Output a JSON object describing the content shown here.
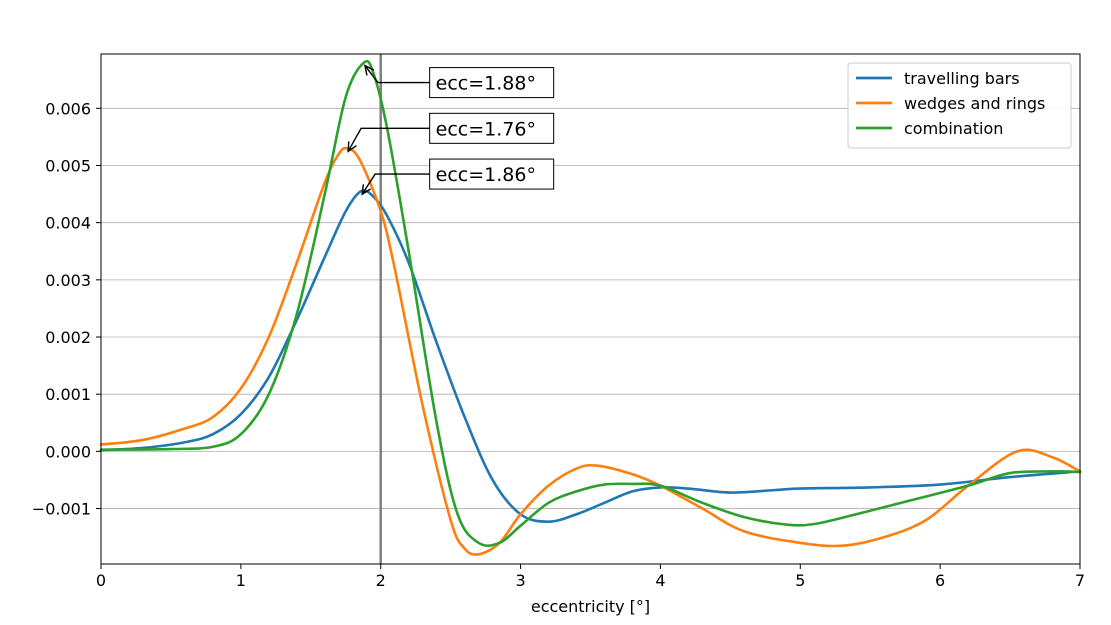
{
  "chart_data": {
    "type": "line",
    "title": "",
    "xlabel": "eccentricity [°]",
    "ylabel": "",
    "xlim": [
      0,
      7
    ],
    "ylim": [
      -0.00197,
      0.00695
    ],
    "xticks": [
      0,
      1,
      2,
      3,
      4,
      5,
      6,
      7
    ],
    "xtick_labels": [
      "0",
      "1",
      "2",
      "3",
      "4",
      "5",
      "6",
      "7"
    ],
    "yticks": [
      -0.001,
      0.0,
      0.001,
      0.002,
      0.003,
      0.004,
      0.005,
      0.006
    ],
    "ytick_labels": [
      "−0.001",
      "0.000",
      "0.001",
      "0.002",
      "0.003",
      "0.004",
      "0.005",
      "0.006"
    ],
    "grid": "horizontal",
    "legend_position": "top-right",
    "vline": {
      "x": 2.0,
      "color": "#7f7f7f"
    },
    "series": [
      {
        "name": "travelling bars",
        "color": "#1f77b4",
        "points": [
          [
            0.0,
            2e-05
          ],
          [
            0.3,
            6e-05
          ],
          [
            0.6,
            0.00016
          ],
          [
            0.8,
            0.0003
          ],
          [
            1.0,
            0.00065
          ],
          [
            1.2,
            0.0013
          ],
          [
            1.4,
            0.0023
          ],
          [
            1.6,
            0.0034
          ],
          [
            1.75,
            0.0042
          ],
          [
            1.86,
            0.00455
          ],
          [
            1.95,
            0.00445
          ],
          [
            2.05,
            0.0041
          ],
          [
            2.2,
            0.0033
          ],
          [
            2.4,
            0.0019
          ],
          [
            2.6,
            0.0006
          ],
          [
            2.8,
            -0.0005
          ],
          [
            3.0,
            -0.0011
          ],
          [
            3.2,
            -0.00123
          ],
          [
            3.4,
            -0.0011
          ],
          [
            3.6,
            -0.0009
          ],
          [
            3.8,
            -0.0007
          ],
          [
            4.0,
            -0.00063
          ],
          [
            4.2,
            -0.00065
          ],
          [
            4.5,
            -0.00072
          ],
          [
            4.8,
            -0.00068
          ],
          [
            5.0,
            -0.00065
          ],
          [
            5.5,
            -0.00063
          ],
          [
            6.0,
            -0.00058
          ],
          [
            6.5,
            -0.00045
          ],
          [
            7.0,
            -0.00035
          ]
        ]
      },
      {
        "name": "wedges and rings",
        "color": "#ff7f0e",
        "points": [
          [
            0.0,
            0.00012
          ],
          [
            0.3,
            0.0002
          ],
          [
            0.6,
            0.0004
          ],
          [
            0.8,
            0.0006
          ],
          [
            1.0,
            0.0011
          ],
          [
            1.2,
            0.002
          ],
          [
            1.4,
            0.0033
          ],
          [
            1.6,
            0.0047
          ],
          [
            1.7,
            0.0052
          ],
          [
            1.76,
            0.0053
          ],
          [
            1.85,
            0.0051
          ],
          [
            2.0,
            0.0042
          ],
          [
            2.1,
            0.0032
          ],
          [
            2.3,
            0.0008
          ],
          [
            2.5,
            -0.0012
          ],
          [
            2.6,
            -0.0017
          ],
          [
            2.7,
            -0.0018
          ],
          [
            2.85,
            -0.0016
          ],
          [
            3.0,
            -0.0011
          ],
          [
            3.2,
            -0.0006
          ],
          [
            3.4,
            -0.0003
          ],
          [
            3.55,
            -0.00025
          ],
          [
            3.8,
            -0.0004
          ],
          [
            4.0,
            -0.0006
          ],
          [
            4.3,
            -0.001
          ],
          [
            4.6,
            -0.0014
          ],
          [
            5.0,
            -0.0016
          ],
          [
            5.3,
            -0.00165
          ],
          [
            5.6,
            -0.0015
          ],
          [
            5.9,
            -0.0012
          ],
          [
            6.2,
            -0.0006
          ],
          [
            6.55,
            0.0
          ],
          [
            6.8,
            -0.0001
          ],
          [
            7.0,
            -0.00035
          ]
        ]
      },
      {
        "name": "combination",
        "color": "#2ca02c",
        "points": [
          [
            0.0,
            3e-05
          ],
          [
            0.5,
            4e-05
          ],
          [
            0.8,
            8e-05
          ],
          [
            1.0,
            0.0003
          ],
          [
            1.2,
            0.001
          ],
          [
            1.4,
            0.0024
          ],
          [
            1.6,
            0.0045
          ],
          [
            1.75,
            0.0062
          ],
          [
            1.88,
            0.0068
          ],
          [
            1.95,
            0.0066
          ],
          [
            2.05,
            0.0056
          ],
          [
            2.2,
            0.0035
          ],
          [
            2.4,
            0.0005
          ],
          [
            2.55,
            -0.0011
          ],
          [
            2.7,
            -0.0016
          ],
          [
            2.85,
            -0.0016
          ],
          [
            3.0,
            -0.0013
          ],
          [
            3.2,
            -0.0009
          ],
          [
            3.4,
            -0.0007
          ],
          [
            3.6,
            -0.00058
          ],
          [
            3.8,
            -0.00057
          ],
          [
            4.0,
            -0.0006
          ],
          [
            4.3,
            -0.0009
          ],
          [
            4.6,
            -0.00115
          ],
          [
            4.9,
            -0.00128
          ],
          [
            5.1,
            -0.00127
          ],
          [
            5.4,
            -0.0011
          ],
          [
            5.8,
            -0.00085
          ],
          [
            6.2,
            -0.0006
          ],
          [
            6.5,
            -0.00038
          ],
          [
            6.8,
            -0.00035
          ],
          [
            7.0,
            -0.00036
          ]
        ]
      }
    ],
    "annotations": [
      {
        "text": "ecc=1.88°",
        "series": "combination",
        "x": 1.88,
        "y": 0.0068,
        "text_at": [
          2.35,
          0.00645
        ]
      },
      {
        "text": "ecc=1.76°",
        "series": "wedges and rings",
        "x": 1.76,
        "y": 0.0053,
        "text_at": [
          2.35,
          0.00565
        ]
      },
      {
        "text": "ecc=1.86°",
        "series": "travelling bars",
        "x": 1.86,
        "y": 0.00455,
        "text_at": [
          2.35,
          0.00485
        ]
      }
    ]
  }
}
